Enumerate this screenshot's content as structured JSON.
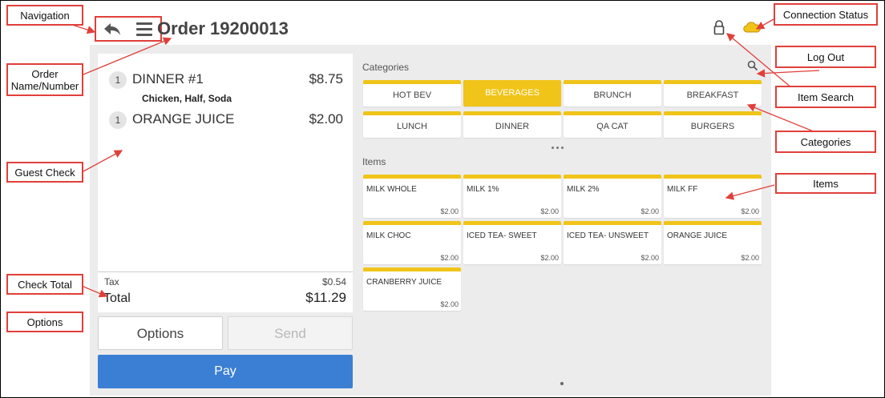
{
  "header": {
    "order_title": "Order 19200013"
  },
  "check": {
    "items": [
      {
        "qty": "1",
        "name": "DINNER #1",
        "price": "$8.75",
        "modifiers": "Chicken, Half, Soda"
      },
      {
        "qty": "1",
        "name": "ORANGE JUICE",
        "price": "$2.00"
      }
    ],
    "tax_label": "Tax",
    "tax_value": "$0.54",
    "total_label": "Total",
    "total_value": "$11.29"
  },
  "actions": {
    "options_label": "Options",
    "send_label": "Send",
    "pay_label": "Pay"
  },
  "categories": {
    "title": "Categories",
    "tiles": [
      "HOT BEV",
      "BEVERAGES",
      "BRUNCH",
      "BREAKFAST",
      "LUNCH",
      "DINNER",
      "QA CAT",
      "BURGERS"
    ],
    "active": "BEVERAGES"
  },
  "items": {
    "title": "Items",
    "tiles": [
      {
        "name": "MILK WHOLE",
        "price": "$2.00"
      },
      {
        "name": "MILK 1%",
        "price": "$2.00"
      },
      {
        "name": "MILK 2%",
        "price": "$2.00"
      },
      {
        "name": "MILK FF",
        "price": "$2.00"
      },
      {
        "name": "MILK CHOC",
        "price": "$2.00"
      },
      {
        "name": "ICED TEA- SWEET",
        "price": "$2.00"
      },
      {
        "name": "ICED TEA- UNSWEET",
        "price": "$2.00"
      },
      {
        "name": "ORANGE JUICE",
        "price": "$2.00"
      },
      {
        "name": "CRANBERRY JUICE",
        "price": "$2.00"
      }
    ]
  },
  "callouts": {
    "navigation": "Navigation",
    "order_name_line1": "Order",
    "order_name_line2": "Name/Number",
    "guest_check": "Guest Check",
    "check_total": "Check Total",
    "options": "Options",
    "connection_status": "Connection Status",
    "log_out": "Log Out",
    "item_search": "Item Search",
    "categories": "Categories",
    "items": "Items"
  },
  "colors": {
    "accent_yellow": "#f0c419",
    "pay_blue": "#3b7fd4",
    "callout_red": "#e0403a"
  },
  "icons": [
    "back-arrow-icon",
    "hamburger-menu-icon",
    "lock-icon",
    "cloud-icon",
    "search-icon"
  ]
}
